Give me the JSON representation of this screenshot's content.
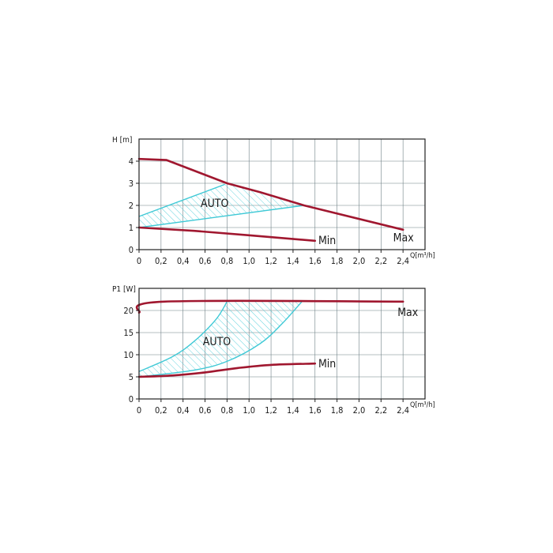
{
  "chart_data": [
    {
      "type": "line",
      "ylabel": "H [m]",
      "xlabel": "Q[m³/h]",
      "xlim": [
        0,
        2.6
      ],
      "ylim": [
        0,
        5
      ],
      "x_ticks": [
        0,
        0.2,
        0.4,
        0.6,
        0.8,
        1.0,
        1.2,
        1.4,
        1.6,
        1.8,
        2.0,
        2.2,
        2.4
      ],
      "x_tick_labels": [
        "0",
        "0,2",
        "0,4",
        "0,6",
        "0,8",
        "1,0",
        "1,2",
        "1,4",
        "1,6",
        "1,8",
        "2,0",
        "2,2",
        "2,4"
      ],
      "y_ticks": [
        0,
        1,
        2,
        3,
        4
      ],
      "y_tick_labels": [
        "0",
        "1",
        "2",
        "3",
        "4"
      ],
      "grid": true,
      "colors": {
        "curve": "#a0172f",
        "auto": "#3fc9d6"
      },
      "series": [
        {
          "name": "Max",
          "points": [
            [
              0,
              4.1
            ],
            [
              0.25,
              4.05
            ],
            [
              0.8,
              3.0
            ],
            [
              1.1,
              2.6
            ],
            [
              1.5,
              2.0
            ],
            [
              2.4,
              0.9
            ]
          ]
        },
        {
          "name": "Min",
          "points": [
            [
              0,
              1.0
            ],
            [
              0.5,
              0.85
            ],
            [
              1.0,
              0.65
            ],
            [
              1.6,
              0.4
            ]
          ]
        }
      ],
      "auto_region": {
        "upper": [
          [
            0,
            1.5
          ],
          [
            0.78,
            2.95
          ]
        ],
        "lower": [
          [
            0,
            1.0
          ],
          [
            1.5,
            2.0
          ]
        ]
      },
      "annotations": [
        {
          "text": "AUTO",
          "x": 0.56,
          "y": 2.1
        },
        {
          "text": "Min",
          "x": 1.63,
          "y": 0.42
        },
        {
          "text": "Max",
          "x": 2.31,
          "y": 0.55
        }
      ]
    },
    {
      "type": "line",
      "ylabel": "P1 [W]",
      "xlabel": "Q[m³/h]",
      "xlim": [
        0,
        2.6
      ],
      "ylim": [
        0,
        25
      ],
      "x_ticks": [
        0,
        0.2,
        0.4,
        0.6,
        0.8,
        1.0,
        1.2,
        1.4,
        1.6,
        1.8,
        2.0,
        2.2,
        2.4
      ],
      "x_tick_labels": [
        "0",
        "0,2",
        "0,4",
        "0,6",
        "0,8",
        "1,0",
        "1,2",
        "1,4",
        "1,6",
        "1,8",
        "2,0",
        "2,2",
        "2,4"
      ],
      "y_ticks": [
        0,
        5,
        10,
        15,
        20
      ],
      "y_tick_labels": [
        "0",
        "5",
        "10",
        "15",
        "20"
      ],
      "grid": true,
      "colors": {
        "curve": "#a0172f",
        "auto": "#3fc9d6"
      },
      "series": [
        {
          "name": "Max",
          "points": [
            [
              0,
              19.5
            ],
            [
              0.23,
              22.0
            ],
            [
              2.4,
              22.0
            ]
          ]
        },
        {
          "name": "Min",
          "points": [
            [
              0,
              5.0
            ],
            [
              0.3,
              5.3
            ],
            [
              0.6,
              6.0
            ],
            [
              0.9,
              7.0
            ],
            [
              1.2,
              7.7
            ],
            [
              1.6,
              8.0
            ]
          ]
        }
      ],
      "auto_region": {
        "upper": [
          [
            0,
            6.2
          ],
          [
            0.3,
            9.5
          ],
          [
            0.5,
            13.0
          ],
          [
            0.7,
            18.0
          ],
          [
            0.8,
            22.0
          ]
        ],
        "lower": [
          [
            0,
            5.0
          ],
          [
            0.5,
            6.5
          ],
          [
            0.8,
            8.5
          ],
          [
            1.1,
            12.5
          ],
          [
            1.3,
            17.0
          ],
          [
            1.48,
            22.0
          ]
        ]
      },
      "annotations": [
        {
          "text": "AUTO",
          "x": 0.58,
          "y": 13.0
        },
        {
          "text": "Min",
          "x": 1.63,
          "y": 8.0
        },
        {
          "text": "Max",
          "x": 2.35,
          "y": 19.6
        }
      ]
    }
  ]
}
